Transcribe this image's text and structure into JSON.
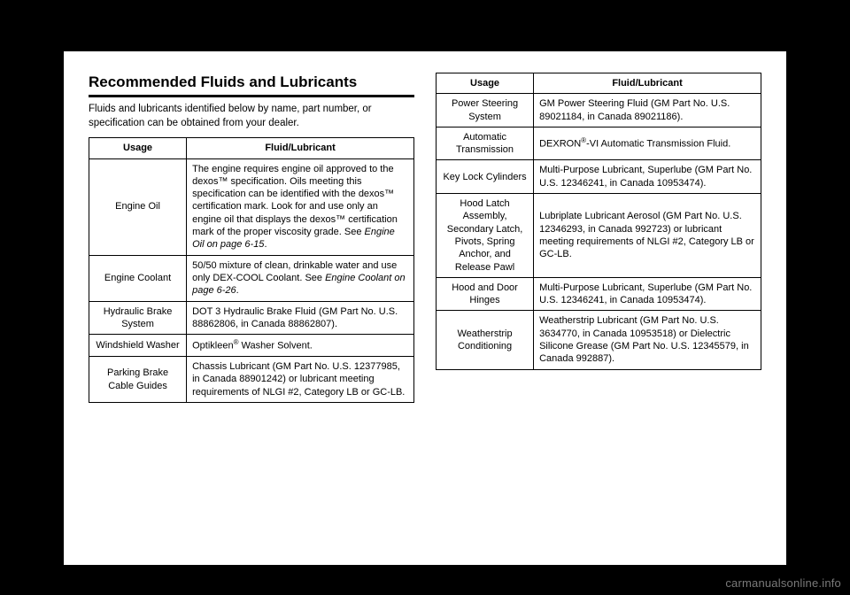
{
  "heading": "Recommended Fluids and Lubricants",
  "intro": "Fluids and lubricants identified below by name, part number, or specification can be obtained from your dealer.",
  "columns": {
    "usage": "Usage",
    "fluid": "Fluid/Lubricant"
  },
  "left_rows": [
    {
      "usage": "Engine Oil",
      "fluid_html": "The engine requires engine oil approved to the dexos™ specification. Oils meeting this specification can be identified with the dexos™ certification mark. Look for and use only an engine oil that displays the dexos™ certification mark of the proper viscosity grade. See <span class=\"ref\">Engine Oil on page 6-15</span>."
    },
    {
      "usage": "Engine Coolant",
      "fluid_html": "50/50 mixture of clean, drinkable water and use only DEX-COOL Coolant. See <span class=\"ref\">Engine Coolant on page 6-26</span>."
    },
    {
      "usage": "Hydraulic Brake System",
      "fluid_html": "DOT 3 Hydraulic Brake Fluid (GM Part No. U.S. 88862806, in Canada 88862807)."
    },
    {
      "usage": "Windshield Washer",
      "fluid_html": "Optikleen<sup class=\"reg\">®</sup> Washer Solvent."
    },
    {
      "usage": "Parking Brake Cable Guides",
      "fluid_html": "Chassis Lubricant (GM Part No. U.S. 12377985, in Canada 88901242) or lubricant meeting requirements of NLGI #2, Category LB or GC-LB."
    }
  ],
  "right_rows": [
    {
      "usage": "Power Steering System",
      "fluid_html": "GM Power Steering Fluid (GM Part No. U.S. 89021184, in Canada 89021186)."
    },
    {
      "usage": "Automatic Transmission",
      "fluid_html": "DEXRON<sup class=\"reg\">®</sup>-VI Automatic Transmission Fluid."
    },
    {
      "usage": "Key Lock Cylinders",
      "fluid_html": "Multi-Purpose Lubricant, Superlube (GM Part No. U.S. 12346241, in Canada 10953474)."
    },
    {
      "usage": "Hood Latch Assembly, Secondary Latch, Pivots, Spring Anchor, and Release Pawl",
      "fluid_html": "Lubriplate Lubricant Aerosol (GM Part No. U.S. 12346293, in Canada 992723) or lubricant meeting requirements of NLGI #2, Category LB or GC-LB."
    },
    {
      "usage": "Hood and Door Hinges",
      "fluid_html": "Multi-Purpose Lubricant, Superlube (GM Part No. U.S. 12346241, in Canada 10953474)."
    },
    {
      "usage": "Weatherstrip Conditioning",
      "fluid_html": "Weatherstrip Lubricant (GM Part No. U.S. 3634770, in Canada 10953518) or Dielectric Silicone Grease (GM Part No. U.S. 12345579, in Canada 992887)."
    }
  ],
  "watermark": "carmanualsonline.info",
  "style": {
    "page_bg": "#ffffff",
    "outer_bg": "#000000",
    "rule_color": "#000000",
    "border_color": "#000000",
    "heading_fontsize": 17,
    "body_fontsize": 11,
    "intro_fontsize": 11.5,
    "watermark_color": "#7a7a7a"
  }
}
